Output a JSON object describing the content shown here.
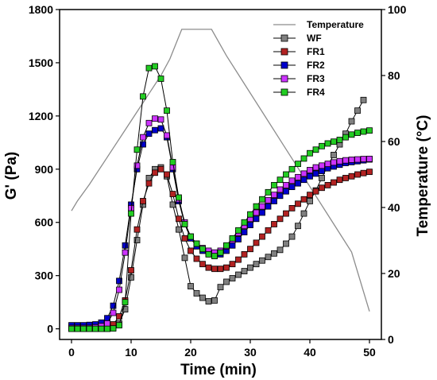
{
  "chart_data": {
    "type": "line",
    "xlabel": "Time (min)",
    "ylabel": "G' (Pa)",
    "y2label": "Temperature (°C)",
    "xlim": [
      -2,
      52
    ],
    "ylim": [
      -60,
      1800
    ],
    "y2lim": [
      0,
      100
    ],
    "xticks": [
      0,
      10,
      20,
      30,
      40,
      50
    ],
    "yticks": [
      0,
      300,
      600,
      900,
      1200,
      1500,
      1800
    ],
    "y2ticks": [
      0,
      20,
      40,
      60,
      80,
      100
    ],
    "legend_position": "top-right",
    "temperature": {
      "name": "Temperature",
      "color": "#8c8c8c",
      "x": [
        0,
        1,
        3,
        5,
        7,
        9,
        11,
        13,
        15,
        16.5,
        18.5,
        20,
        21,
        23.5,
        26,
        29,
        32,
        35,
        38,
        41,
        44,
        47,
        50
      ],
      "y": [
        39,
        42,
        47,
        52.5,
        58,
        63.5,
        69,
        74.5,
        80,
        85,
        94,
        94,
        94,
        94,
        86,
        77.5,
        69,
        60.5,
        52,
        43.5,
        35,
        26.5,
        8.5
      ]
    },
    "series": [
      {
        "name": "WF",
        "color": "#808080",
        "x": [
          0,
          1,
          2,
          3,
          4,
          5,
          6,
          7,
          8,
          9,
          10,
          11,
          12,
          13,
          14,
          15,
          16,
          17,
          18,
          19,
          20,
          21,
          22,
          23,
          24,
          25,
          26,
          27,
          28,
          29,
          30,
          31,
          32,
          33,
          34,
          35,
          36,
          37,
          38,
          39,
          40,
          41,
          42,
          43,
          44,
          45,
          46,
          47,
          48,
          49
        ],
        "y": [
          0,
          0,
          0,
          0,
          0,
          0,
          0,
          8,
          30,
          110,
          290,
          500,
          700,
          850,
          900,
          910,
          860,
          700,
          560,
          400,
          240,
          200,
          175,
          155,
          160,
          235,
          265,
          285,
          305,
          325,
          345,
          365,
          385,
          405,
          425,
          445,
          480,
          520,
          580,
          650,
          720,
          780,
          850,
          920,
          980,
          1040,
          1100,
          1170,
          1230,
          1290
        ]
      },
      {
        "name": "FR1",
        "color": "#b22222",
        "x": [
          0,
          1,
          2,
          3,
          4,
          5,
          6,
          7,
          8,
          9,
          10,
          11,
          12,
          13,
          14,
          15,
          16,
          17,
          18,
          19,
          20,
          21,
          22,
          23,
          24,
          25,
          26,
          27,
          28,
          29,
          30,
          31,
          32,
          33,
          34,
          35,
          36,
          37,
          38,
          39,
          40,
          41,
          42,
          43,
          44,
          45,
          46,
          47,
          48,
          49,
          50
        ],
        "y": [
          5,
          5,
          5,
          5,
          5,
          5,
          10,
          25,
          70,
          160,
          330,
          560,
          720,
          820,
          880,
          900,
          870,
          760,
          620,
          510,
          440,
          395,
          365,
          345,
          338,
          338,
          345,
          365,
          390,
          420,
          450,
          485,
          520,
          555,
          590,
          620,
          650,
          680,
          705,
          730,
          755,
          775,
          795,
          810,
          825,
          840,
          850,
          860,
          870,
          878,
          885
        ]
      },
      {
        "name": "FR2",
        "color": "#0000cc",
        "x": [
          0,
          1,
          2,
          3,
          4,
          5,
          6,
          7,
          8,
          9,
          10,
          11,
          12,
          13,
          14,
          15,
          16,
          17,
          18,
          19,
          20,
          21,
          22,
          23,
          24,
          25,
          26,
          27,
          28,
          29,
          30,
          31,
          32,
          33,
          34,
          35,
          36,
          37,
          38,
          39,
          40,
          41,
          42,
          43,
          44,
          45,
          46,
          47,
          48,
          49,
          50
        ],
        "y": [
          20,
          20,
          20,
          22,
          25,
          35,
          60,
          130,
          270,
          470,
          700,
          900,
          1040,
          1100,
          1120,
          1130,
          1080,
          900,
          720,
          590,
          510,
          465,
          440,
          425,
          415,
          420,
          440,
          470,
          505,
          545,
          585,
          620,
          655,
          690,
          720,
          750,
          775,
          800,
          820,
          840,
          860,
          875,
          890,
          905,
          915,
          925,
          935,
          940,
          945,
          950,
          955
        ]
      },
      {
        "name": "FR3",
        "color": "#cc33ff",
        "x": [
          0,
          1,
          2,
          3,
          4,
          5,
          6,
          7,
          8,
          9,
          10,
          11,
          12,
          13,
          14,
          15,
          16,
          17,
          18,
          19,
          20,
          21,
          22,
          23,
          24,
          25,
          26,
          27,
          28,
          29,
          30,
          31,
          32,
          33,
          34,
          35,
          36,
          37,
          38,
          39,
          40,
          41,
          42,
          43,
          44,
          45,
          46,
          47,
          48,
          49,
          50
        ],
        "y": [
          5,
          5,
          5,
          5,
          8,
          15,
          30,
          90,
          220,
          430,
          680,
          920,
          1080,
          1160,
          1185,
          1180,
          1090,
          910,
          730,
          600,
          520,
          480,
          455,
          440,
          430,
          440,
          465,
          500,
          540,
          580,
          620,
          655,
          690,
          725,
          755,
          785,
          810,
          835,
          855,
          875,
          895,
          910,
          920,
          930,
          938,
          945,
          950,
          953,
          955,
          957,
          958
        ]
      },
      {
        "name": "FR4",
        "color": "#22cc22",
        "x": [
          0,
          1,
          2,
          3,
          4,
          5,
          6,
          7,
          8,
          9,
          10,
          11,
          12,
          13,
          14,
          15,
          16,
          17,
          18,
          19,
          20,
          21,
          22,
          23,
          24,
          25,
          26,
          27,
          28,
          29,
          30,
          31,
          32,
          33,
          34,
          35,
          36,
          37,
          38,
          39,
          40,
          41,
          42,
          43,
          44,
          45,
          46,
          47,
          48,
          49,
          50
        ],
        "y": [
          0,
          0,
          0,
          0,
          0,
          0,
          0,
          2,
          20,
          150,
          650,
          1010,
          1310,
          1470,
          1480,
          1410,
          1230,
          940,
          740,
          590,
          520,
          480,
          450,
          420,
          410,
          430,
          470,
          510,
          555,
          600,
          645,
          690,
          730,
          770,
          810,
          840,
          870,
          900,
          930,
          960,
          990,
          1010,
          1030,
          1045,
          1055,
          1065,
          1080,
          1095,
          1105,
          1112,
          1118
        ]
      }
    ]
  }
}
